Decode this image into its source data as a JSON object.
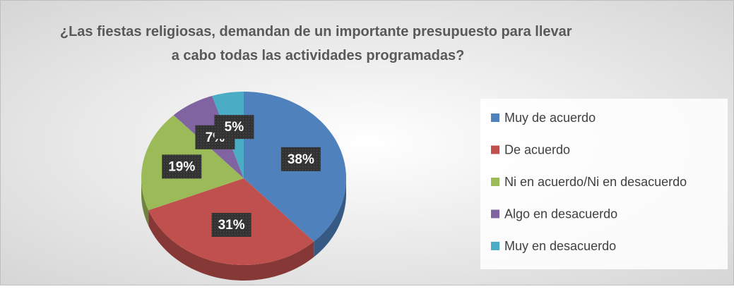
{
  "chart_data": {
    "type": "pie",
    "title": "¿Las fiestas religiosas, demandan de un importante presupuesto para llevar a cabo todas las actividades programadas?",
    "categories": [
      "Muy de acuerdo",
      "De acuerdo",
      "Ni en acuerdo/Ni en desacuerdo",
      "Algo en desacuerdo",
      "Muy en desacuerdo"
    ],
    "values": [
      38,
      31,
      19,
      7,
      5
    ],
    "value_labels": [
      "38%",
      "31%",
      "19%",
      "7%",
      "5%"
    ],
    "colors": [
      "#4f81bd",
      "#c0504d",
      "#9bbb59",
      "#8064a2",
      "#4bacc6"
    ],
    "legend": "right"
  }
}
